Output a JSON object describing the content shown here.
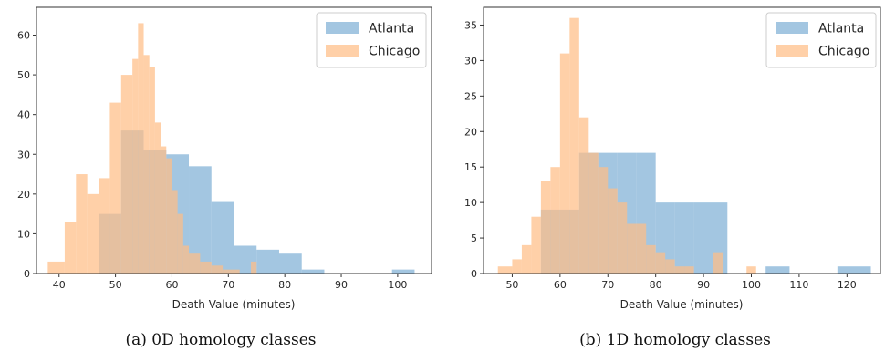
{
  "chart_data": [
    {
      "type": "bar",
      "subtype": "overlaid-histogram",
      "caption": "(a) 0D homology classes",
      "xlabel": "Death Value (minutes)",
      "xlim": [
        36,
        106
      ],
      "ylim": [
        0,
        67
      ],
      "xticks": [
        40,
        50,
        60,
        70,
        80,
        90,
        100
      ],
      "yticks": [
        0,
        10,
        20,
        30,
        40,
        50,
        60
      ],
      "legend": "top-right",
      "series": [
        {
          "name": "Atlanta",
          "color": "#7fb0d5",
          "bins": [
            {
              "x0": 47.0,
              "x1": 51.0,
              "y": 15
            },
            {
              "x0": 51.0,
              "x1": 55.0,
              "y": 36
            },
            {
              "x0": 55.0,
              "x1": 59.0,
              "y": 31
            },
            {
              "x0": 59.0,
              "x1": 63.0,
              "y": 30
            },
            {
              "x0": 63.0,
              "x1": 67.0,
              "y": 27
            },
            {
              "x0": 67.0,
              "x1": 71.0,
              "y": 18
            },
            {
              "x0": 71.0,
              "x1": 75.0,
              "y": 7
            },
            {
              "x0": 75.0,
              "x1": 79.0,
              "y": 6
            },
            {
              "x0": 79.0,
              "x1": 83.0,
              "y": 5
            },
            {
              "x0": 83.0,
              "x1": 87.0,
              "y": 1
            },
            {
              "x0": 99.0,
              "x1": 103.0,
              "y": 1
            }
          ]
        },
        {
          "name": "Chicago",
          "color": "#ffbe86",
          "bins": [
            {
              "x0": 38.0,
              "x1": 41.0,
              "y": 3
            },
            {
              "x0": 41.0,
              "x1": 43.0,
              "y": 13
            },
            {
              "x0": 43.0,
              "x1": 45.0,
              "y": 25
            },
            {
              "x0": 45.0,
              "x1": 47.0,
              "y": 20
            },
            {
              "x0": 47.0,
              "x1": 49.0,
              "y": 24
            },
            {
              "x0": 49.0,
              "x1": 51.0,
              "y": 43
            },
            {
              "x0": 51.0,
              "x1": 53.0,
              "y": 50
            },
            {
              "x0": 53.0,
              "x1": 54.0,
              "y": 54
            },
            {
              "x0": 54.0,
              "x1": 55.0,
              "y": 63
            },
            {
              "x0": 55.0,
              "x1": 56.0,
              "y": 55
            },
            {
              "x0": 56.0,
              "x1": 57.0,
              "y": 52
            },
            {
              "x0": 57.0,
              "x1": 58.0,
              "y": 38
            },
            {
              "x0": 58.0,
              "x1": 59.0,
              "y": 32
            },
            {
              "x0": 59.0,
              "x1": 60.0,
              "y": 29
            },
            {
              "x0": 60.0,
              "x1": 61.0,
              "y": 21
            },
            {
              "x0": 61.0,
              "x1": 62.0,
              "y": 15
            },
            {
              "x0": 62.0,
              "x1": 63.0,
              "y": 7
            },
            {
              "x0": 63.0,
              "x1": 65.0,
              "y": 5
            },
            {
              "x0": 65.0,
              "x1": 67.0,
              "y": 3
            },
            {
              "x0": 67.0,
              "x1": 69.0,
              "y": 2
            },
            {
              "x0": 69.0,
              "x1": 71.0,
              "y": 1
            },
            {
              "x0": 71.0,
              "x1": 72.0,
              "y": 1
            },
            {
              "x0": 74.0,
              "x1": 75.0,
              "y": 3
            }
          ]
        }
      ]
    },
    {
      "type": "bar",
      "subtype": "overlaid-histogram",
      "caption": "(b) 1D homology classes",
      "xlabel": "Death Value (minutes)",
      "xlim": [
        44,
        127
      ],
      "ylim": [
        0,
        37.5
      ],
      "xticks": [
        50,
        60,
        70,
        80,
        90,
        100,
        110,
        120
      ],
      "yticks": [
        0,
        5,
        10,
        15,
        20,
        25,
        30,
        35
      ],
      "legend": "top-right",
      "series": [
        {
          "name": "Atlanta",
          "color": "#7fb0d5",
          "bins": [
            {
              "x0": 56.0,
              "x1": 60.0,
              "y": 9
            },
            {
              "x0": 60.0,
              "x1": 64.0,
              "y": 9
            },
            {
              "x0": 64.0,
              "x1": 68.0,
              "y": 17
            },
            {
              "x0": 68.0,
              "x1": 72.0,
              "y": 17
            },
            {
              "x0": 72.0,
              "x1": 76.0,
              "y": 17
            },
            {
              "x0": 76.0,
              "x1": 80.0,
              "y": 17
            },
            {
              "x0": 80.0,
              "x1": 84.0,
              "y": 10
            },
            {
              "x0": 84.0,
              "x1": 88.0,
              "y": 10
            },
            {
              "x0": 88.0,
              "x1": 92.0,
              "y": 10
            },
            {
              "x0": 92.0,
              "x1": 95.0,
              "y": 10
            },
            {
              "x0": 103.0,
              "x1": 108.0,
              "y": 1
            },
            {
              "x0": 118.0,
              "x1": 125.0,
              "y": 1
            }
          ]
        },
        {
          "name": "Chicago",
          "color": "#ffbe86",
          "bins": [
            {
              "x0": 47.0,
              "x1": 50.0,
              "y": 1
            },
            {
              "x0": 50.0,
              "x1": 52.0,
              "y": 2
            },
            {
              "x0": 52.0,
              "x1": 54.0,
              "y": 4
            },
            {
              "x0": 54.0,
              "x1": 56.0,
              "y": 8
            },
            {
              "x0": 56.0,
              "x1": 58.0,
              "y": 13
            },
            {
              "x0": 58.0,
              "x1": 60.0,
              "y": 15
            },
            {
              "x0": 60.0,
              "x1": 62.0,
              "y": 31
            },
            {
              "x0": 62.0,
              "x1": 64.0,
              "y": 36
            },
            {
              "x0": 64.0,
              "x1": 66.0,
              "y": 22
            },
            {
              "x0": 66.0,
              "x1": 68.0,
              "y": 17
            },
            {
              "x0": 68.0,
              "x1": 70.0,
              "y": 15
            },
            {
              "x0": 70.0,
              "x1": 72.0,
              "y": 12
            },
            {
              "x0": 72.0,
              "x1": 74.0,
              "y": 10
            },
            {
              "x0": 74.0,
              "x1": 76.0,
              "y": 7
            },
            {
              "x0": 76.0,
              "x1": 78.0,
              "y": 7
            },
            {
              "x0": 78.0,
              "x1": 80.0,
              "y": 4
            },
            {
              "x0": 80.0,
              "x1": 82.0,
              "y": 3
            },
            {
              "x0": 82.0,
              "x1": 84.0,
              "y": 2
            },
            {
              "x0": 84.0,
              "x1": 86.0,
              "y": 1
            },
            {
              "x0": 86.0,
              "x1": 88.0,
              "y": 1
            },
            {
              "x0": 92.0,
              "x1": 94.0,
              "y": 3
            },
            {
              "x0": 99.0,
              "x1": 101.0,
              "y": 1
            }
          ]
        }
      ]
    }
  ]
}
